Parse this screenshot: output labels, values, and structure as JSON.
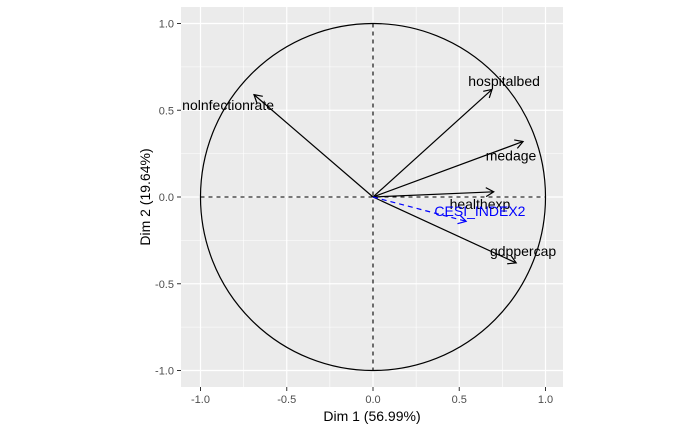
{
  "chart_data": {
    "type": "scatter",
    "subtype": "pca-correlation-circle",
    "title": "",
    "xlabel": "Dim 1 (56.99%)",
    "ylabel": "Dim 2 (19.64%)",
    "xlim": [
      -1.1,
      1.1
    ],
    "ylim": [
      -1.05,
      1.05
    ],
    "xticks": [
      -1.0,
      -0.5,
      0.0,
      0.5,
      1.0
    ],
    "yticks": [
      -1.0,
      -0.5,
      0.0,
      0.5,
      1.0
    ],
    "xtick_labels": [
      "-1.0",
      "-0.5",
      "0.0",
      "0.5",
      "1.0"
    ],
    "ytick_labels": [
      "-1.0",
      "-0.5",
      "0.0",
      "0.5",
      "1.0"
    ],
    "grid": true,
    "panel_background": "#ebebeb",
    "grid_color": "#ffffff",
    "unit_circle": true,
    "variables": [
      {
        "name": "hospitalbed",
        "x": 0.69,
        "y": 0.62,
        "color": "#000000",
        "dashed": false,
        "label_x": 0.76,
        "label_y": 0.67
      },
      {
        "name": "nolnfectionrate",
        "x": -0.69,
        "y": 0.59,
        "color": "#000000",
        "dashed": false,
        "label_x": -0.84,
        "label_y": 0.53
      },
      {
        "name": "medage",
        "x": 0.87,
        "y": 0.32,
        "color": "#000000",
        "dashed": false,
        "label_x": 0.8,
        "label_y": 0.24
      },
      {
        "name": "healthexp",
        "x": 0.7,
        "y": 0.03,
        "color": "#000000",
        "dashed": false,
        "label_x": 0.62,
        "label_y": -0.04
      },
      {
        "name": "gdppercap",
        "x": 0.83,
        "y": -0.38,
        "color": "#000000",
        "dashed": false,
        "label_x": 0.87,
        "label_y": -0.31
      },
      {
        "name": "CESI_INDEX2",
        "x": 0.54,
        "y": -0.14,
        "color": "#0000ff",
        "dashed": true,
        "label_x": 0.62,
        "label_y": -0.08
      }
    ]
  }
}
